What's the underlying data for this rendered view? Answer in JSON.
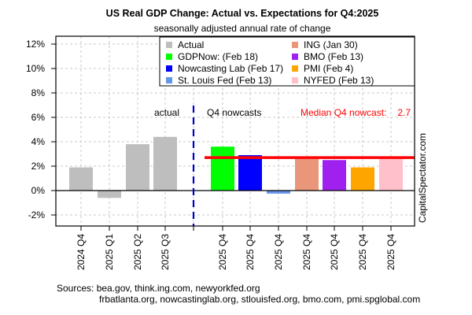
{
  "chart_data": {
    "type": "bar",
    "title": "US Real GDP Change: Actual vs. Expectations for Q4:2025",
    "subtitle": "seasonally adjusted annual rate of change",
    "xlabel": "",
    "ylabel": "",
    "ylim": [
      -2.6,
      13.0
    ],
    "yticks": [
      -2,
      0,
      2,
      4,
      6,
      8,
      10,
      12
    ],
    "ytick_labels": [
      "-2%",
      "0%",
      "2%",
      "4%",
      "6%",
      "8%",
      "10%",
      "12%"
    ],
    "grid": true,
    "legend_position": "top-right",
    "categories": [
      "2024 Q4",
      "2025 Q1",
      "2025 Q2",
      "2025 Q3",
      "",
      "2025 Q4",
      "2025 Q4",
      "2025 Q4",
      "2025 Q4",
      "2025 Q4",
      "2025 Q4",
      "2025 Q4"
    ],
    "bars": [
      {
        "label": "2024 Q4",
        "series": "Actual",
        "value": 1.9,
        "color": "#bebebe"
      },
      {
        "label": "2025 Q1",
        "series": "Actual",
        "value": -0.6,
        "color": "#bebebe"
      },
      {
        "label": "2025 Q2",
        "series": "Actual",
        "value": 3.8,
        "color": "#bebebe"
      },
      {
        "label": "2025 Q3",
        "series": "Actual",
        "value": 4.4,
        "color": "#bebebe"
      },
      {
        "label": "2025 Q4",
        "series": "GDPNow: (Feb 18)",
        "value": 3.6,
        "color": "#00ff00"
      },
      {
        "label": "2025 Q4",
        "series": "Nowcasting Lab (Feb 17)",
        "value": 2.9,
        "color": "#0000ff"
      },
      {
        "label": "2025 Q4",
        "series": "St. Louis Fed (Feb 13)",
        "value": -0.25,
        "color": "#6495ed"
      },
      {
        "label": "2025 Q4",
        "series": "ING (Jan 30)",
        "value": 2.6,
        "color": "#e9967a"
      },
      {
        "label": "2025 Q4",
        "series": "BMO (Feb 13)",
        "value": 2.5,
        "color": "#a020f0"
      },
      {
        "label": "2025 Q4",
        "series": "PMI (Feb 4)",
        "value": 1.9,
        "color": "#ffa500"
      },
      {
        "label": "2025 Q4",
        "series": "NYFED (Feb 13)",
        "value": 2.6,
        "color": "#ffc0cb"
      }
    ],
    "legend": [
      {
        "label": "Actual",
        "color": "#bebebe"
      },
      {
        "label": "GDPNow: (Feb 18)",
        "color": "#00ff00"
      },
      {
        "label": "Nowcasting Lab (Feb 17)",
        "color": "#0000ff"
      },
      {
        "label": "St. Louis Fed (Feb 13)",
        "color": "#6495ed"
      },
      {
        "label": "ING (Jan 30)",
        "color": "#e9967a"
      },
      {
        "label": "BMO (Feb 13)",
        "color": "#a020f0"
      },
      {
        "label": "PMI (Feb 4)",
        "color": "#ffa500"
      },
      {
        "label": "NYFED (Feb 13)",
        "color": "#ffc0cb"
      }
    ],
    "median_line": {
      "value": 2.7,
      "color": "#ff0000"
    },
    "annotations": {
      "actual_label": "actual",
      "nowcasts_label": "Q4 nowcasts",
      "median_label": "Median Q4 nowcast:",
      "median_value": "2.7",
      "median_color": "#ff0000",
      "divider_color": "#0000cd",
      "watermark": "CapitalSpectator.com"
    },
    "sources": {
      "line1": "Sources: bea.gov, think.ing.com, newyorkfed.org",
      "line2": "frbatlanta.org, nowcastinglab.org, stlouisfed.org, bmo.com, pmi.spglobal.com"
    }
  }
}
